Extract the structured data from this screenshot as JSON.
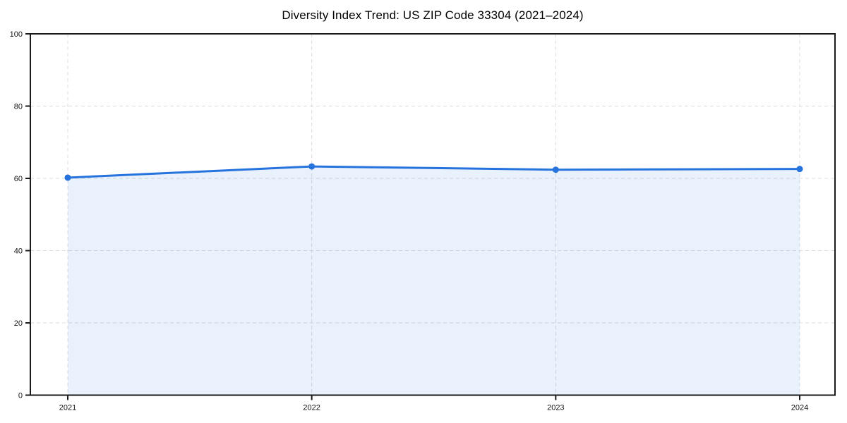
{
  "chart_data": {
    "type": "area",
    "title": "Diversity Index Trend: US ZIP Code 33304 (2021–2024)",
    "categories": [
      "2021",
      "2022",
      "2023",
      "2024"
    ],
    "series": [
      {
        "name": "Diversity Index",
        "values": [
          60.2,
          63.3,
          62.4,
          62.6
        ]
      }
    ],
    "xlabel": "",
    "ylabel": "",
    "ylim": [
      0,
      100
    ],
    "y_ticks": [
      0,
      20,
      40,
      60,
      80,
      100
    ],
    "grid": "dashed-both-axes",
    "legend": "none",
    "marker": "circle",
    "colors": {
      "line": "#2673dd",
      "marker": "#2673dd",
      "area_fill": "#2673dd",
      "area_opacity": "0.10",
      "grid": "#dcdcdc",
      "spine": "#1a1a1a",
      "tick_label": "#111111",
      "title": "#000000",
      "background": "#ffffff"
    }
  }
}
